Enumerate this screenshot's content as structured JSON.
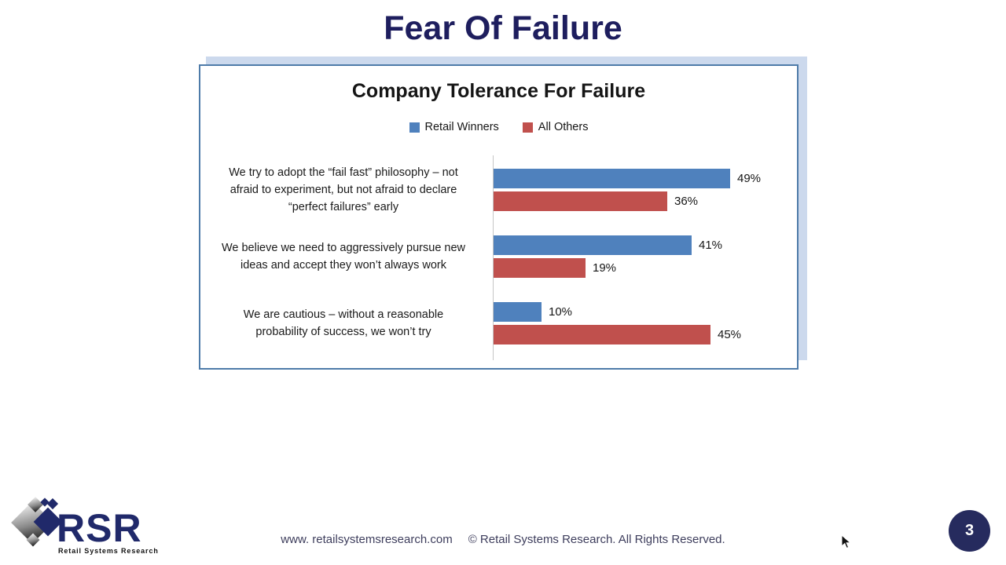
{
  "slide": {
    "title": "Fear Of Failure",
    "page_number": "3"
  },
  "chart_data": {
    "type": "bar",
    "orientation": "horizontal",
    "title": "Company Tolerance For Failure",
    "categories": [
      "We try to adopt the “fail fast” philosophy – not\nafraid to experiment, but not afraid to declare\n“perfect failures” early",
      "We believe we need to aggressively pursue new\nideas and accept they won’t always work",
      "We are cautious – without a reasonable\nprobability of success, we won’t try"
    ],
    "series": [
      {
        "name": "Retail Winners",
        "color": "#4f81bd",
        "values": [
          49,
          41,
          10
        ]
      },
      {
        "name": "All Others",
        "color": "#c0504d",
        "values": [
          36,
          19,
          45
        ]
      }
    ],
    "value_suffix": "%",
    "value_labels": true,
    "xlim": [
      0,
      63
    ],
    "legend_position": "top-center",
    "grid": false
  },
  "footer": {
    "website": "www. retailsystemsresearch.com",
    "copyright": "© Retail Systems Research. All Rights Reserved.",
    "logo_text": "RSR",
    "logo_tagline": "Retail Systems Research"
  },
  "colors": {
    "slide_title": "#1e1e5e",
    "chart_box_border": "#4e7ba9",
    "chart_box_backdrop": "#ccd9ed",
    "page_circle": "#262b5e",
    "logo_navy": "#20296a",
    "bar_blue": "#4f81bd",
    "bar_red": "#c0504d"
  }
}
